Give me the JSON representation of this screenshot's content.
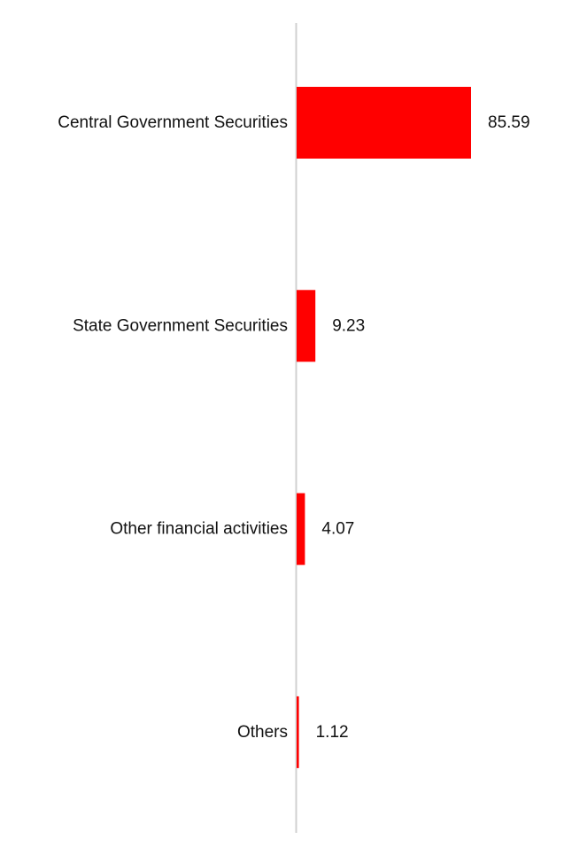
{
  "chart_data": {
    "type": "bar",
    "orientation": "horizontal",
    "categories": [
      "Central Government Securities",
      "State Government Securities",
      "Other financial activities",
      "Others"
    ],
    "values": [
      85.59,
      9.23,
      4.07,
      1.12
    ],
    "value_labels": [
      "85.59",
      "9.23",
      "4.07",
      "1.12"
    ],
    "xlim": [
      0,
      100
    ],
    "grid": false,
    "legend": "none",
    "bar_color": "#ff0000",
    "axis_color": "#d0d0d0",
    "text_color": "#111111"
  }
}
